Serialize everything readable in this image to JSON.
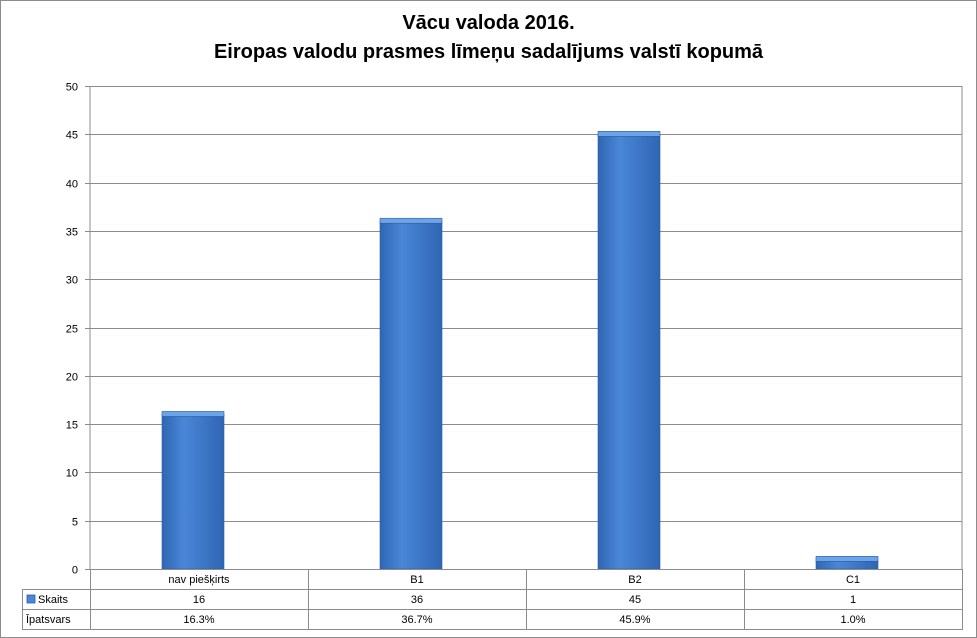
{
  "chart_data": {
    "type": "bar",
    "title": "Vācu valoda 2016.",
    "subtitle": "Eiropas valodu prasmes līmeņu sadalījums valstī kopumā",
    "categories": [
      "nav piešķirts",
      "B1",
      "B2",
      "C1"
    ],
    "series": [
      {
        "name": "Skaits",
        "values": [
          16,
          36,
          45,
          1
        ]
      }
    ],
    "table_rows": [
      {
        "label": "Skaits",
        "cells": [
          "16",
          "36",
          "45",
          "1"
        ]
      },
      {
        "label": "Īpatsvars",
        "cells": [
          "16.3%",
          "36.7%",
          "45.9%",
          "1.0%"
        ]
      }
    ],
    "y_ticks": [
      "0",
      "5",
      "10",
      "15",
      "20",
      "25",
      "30",
      "35",
      "40",
      "45",
      "50"
    ],
    "ylim": [
      0,
      50
    ],
    "grid": true,
    "legend": "data-table",
    "colors": {
      "bar": "#4a86d8",
      "bar_dark": "#2f66b3",
      "bar_top": "#6fa3e8",
      "grid": "#8c8c8c"
    }
  }
}
